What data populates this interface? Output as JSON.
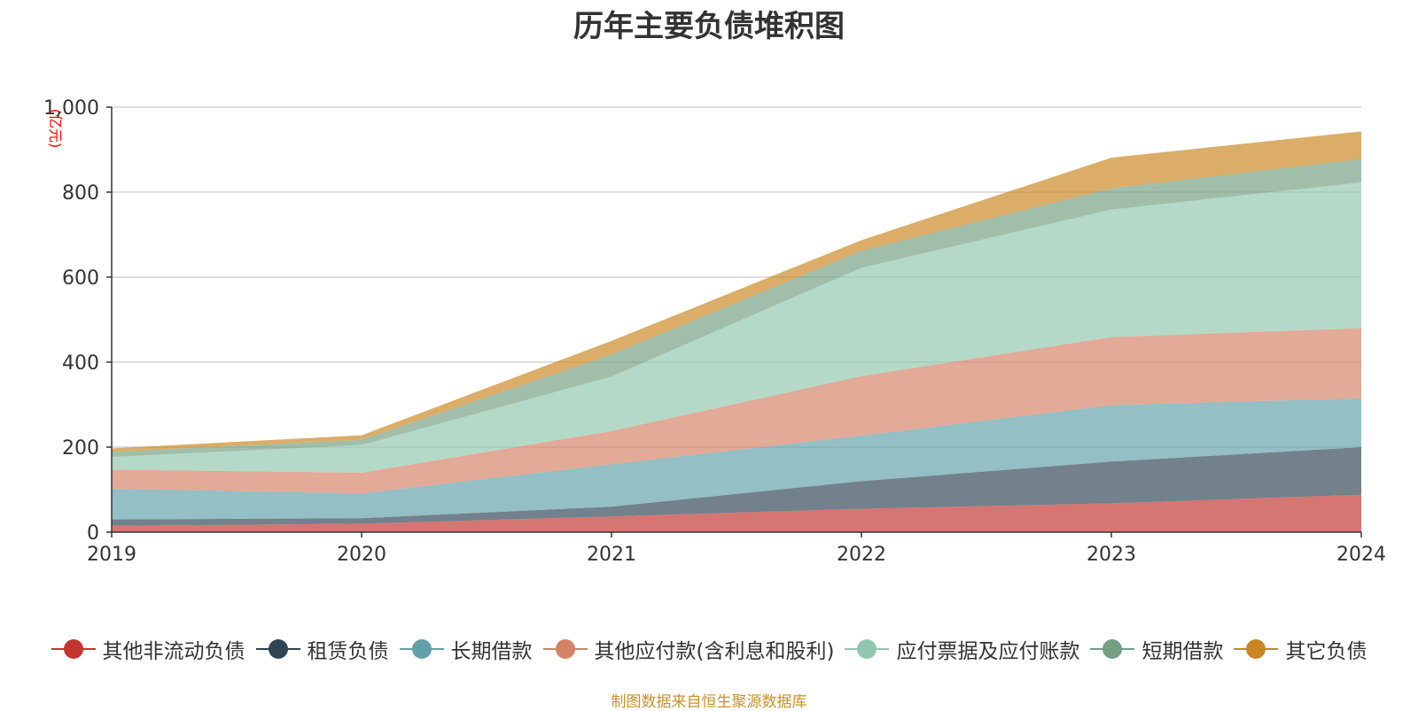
{
  "chart_data": {
    "type": "area",
    "stacked": true,
    "title": "历年主要负债堆积图",
    "ylabel": "(亿元)",
    "xlabel": "",
    "categories": [
      "2019",
      "2020",
      "2021",
      "2022",
      "2023",
      "2024"
    ],
    "ylim": [
      0,
      1000
    ],
    "yticks": [
      0,
      200,
      400,
      600,
      800,
      1000
    ],
    "ytick_labels": [
      "0",
      "200",
      "400",
      "600",
      "800",
      "1,000"
    ],
    "grid": true,
    "legend_position": "bottom",
    "series": [
      {
        "name": "其他非流动负债",
        "color": "#c23531",
        "values": [
          15,
          20,
          37,
          55,
          68,
          88
        ]
      },
      {
        "name": "租赁负债",
        "color": "#2f4554",
        "values": [
          15,
          13,
          23,
          65,
          98,
          112
        ]
      },
      {
        "name": "长期借款",
        "color": "#61a0a8",
        "values": [
          72,
          58,
          100,
          107,
          133,
          115
        ]
      },
      {
        "name": "其他应付款(含利息和股利)",
        "color": "#d48265",
        "values": [
          45,
          49,
          78,
          140,
          160,
          165
        ]
      },
      {
        "name": "应付票据及应付账款",
        "color": "#91c7ae",
        "values": [
          30,
          65,
          128,
          255,
          300,
          343
        ]
      },
      {
        "name": "短期借款",
        "color": "#749f83",
        "values": [
          12,
          12,
          52,
          40,
          50,
          55
        ]
      },
      {
        "name": "其它负债",
        "color": "#ca8622",
        "values": [
          8,
          11,
          32,
          25,
          72,
          65
        ]
      }
    ],
    "source_note": "制图数据来自恒生聚源数据库"
  }
}
